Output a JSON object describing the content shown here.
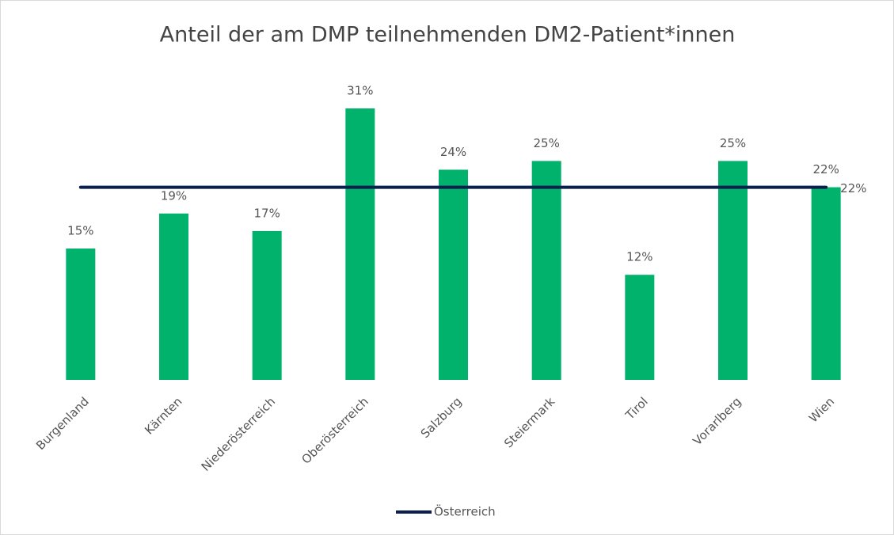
{
  "chart_data": {
    "type": "bar",
    "title": "Anteil der am DMP teilnehmenden DM2-Patient*innen",
    "categories": [
      "Burgenland",
      "Kärnten",
      "Niederösterreich",
      "Oberösterreich",
      "Salzburg",
      "Steiermark",
      "Tirol",
      "Vorarlberg",
      "Wien"
    ],
    "values": [
      15,
      19,
      17,
      31,
      24,
      25,
      12,
      25,
      22
    ],
    "value_labels": [
      "15%",
      "19%",
      "17%",
      "31%",
      "24%",
      "25%",
      "12%",
      "25%",
      "22%"
    ],
    "color": "#00b26b",
    "line": {
      "name": "Österreich",
      "value": 22,
      "value_label": "22%",
      "color": "#0b1f4f"
    },
    "legend": "bottom"
  }
}
